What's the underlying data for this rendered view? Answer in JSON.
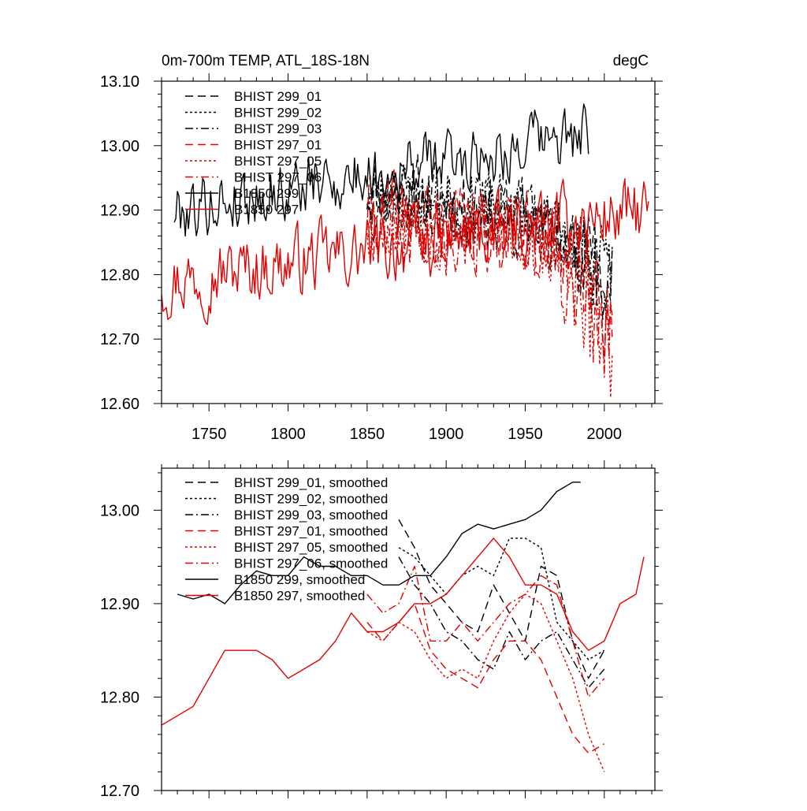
{
  "chart_data": [
    {
      "type": "line",
      "title": "0m-700m TEMP, ATL_18S-18N",
      "title_right": "degC",
      "xlabel": "",
      "ylabel": "",
      "xlim": [
        1720,
        2032
      ],
      "ylim": [
        12.6,
        13.1
      ],
      "xticks": [
        1750,
        1800,
        1850,
        1900,
        1950,
        2000
      ],
      "xtick_labels": [
        "1750",
        "1800",
        "1850",
        "1900",
        "1950",
        "2000"
      ],
      "yticks": [
        12.6,
        12.7,
        12.8,
        12.9,
        13.0,
        13.1
      ],
      "ytick_labels": [
        "12.60",
        "12.70",
        "12.80",
        "12.90",
        "13.00",
        "13.10"
      ],
      "legend_position": "top-left",
      "series": [
        {
          "name": "BHIST 299_01",
          "color": "#000000",
          "dash": "long-dash",
          "x_start": 1850,
          "x_end": 2005,
          "step": 1,
          "base": 12.935,
          "slope": -0.0004,
          "amp": 0.065,
          "seed": 11,
          "end_drop": 0.08
        },
        {
          "name": "BHIST 299_02",
          "color": "#000000",
          "dash": "short-dash",
          "x_start": 1850,
          "x_end": 2005,
          "step": 1,
          "base": 12.93,
          "slope": -0.0004,
          "amp": 0.065,
          "seed": 23,
          "end_drop": 0.09
        },
        {
          "name": "BHIST 299_03",
          "color": "#000000",
          "dash": "dash-dot",
          "x_start": 1850,
          "x_end": 2005,
          "step": 1,
          "base": 12.925,
          "slope": -0.0004,
          "amp": 0.065,
          "seed": 37,
          "end_drop": 0.07
        },
        {
          "name": "BHIST 297_01",
          "color": "#e00000",
          "dash": "long-dash",
          "x_start": 1850,
          "x_end": 2005,
          "step": 1,
          "base": 12.895,
          "slope": -0.0003,
          "amp": 0.07,
          "seed": 41,
          "end_drop": 0.12
        },
        {
          "name": "BHIST 297_05",
          "color": "#e00000",
          "dash": "short-dash",
          "x_start": 1850,
          "x_end": 2005,
          "step": 1,
          "base": 12.89,
          "slope": -0.0003,
          "amp": 0.07,
          "seed": 53,
          "end_drop": 0.14
        },
        {
          "name": "BHIST 297_06",
          "color": "#e00000",
          "dash": "dash-dot",
          "x_start": 1850,
          "x_end": 2005,
          "step": 1,
          "base": 12.885,
          "slope": -0.0003,
          "amp": 0.07,
          "seed": 67,
          "end_drop": 0.12
        },
        {
          "name": "B1850 299",
          "color": "#000000",
          "dash": "solid",
          "x_start": 1728,
          "x_end": 1990,
          "step": 1,
          "base": 12.9,
          "slope": 0.00045,
          "amp": 0.055,
          "seed": 79,
          "end_drop": 0
        },
        {
          "name": "B1850 297",
          "color": "#e00000",
          "dash": "solid",
          "x_start": 1720,
          "x_end": 2028,
          "step": 1,
          "base": 12.79,
          "slope": 0.00035,
          "amp": 0.06,
          "seed": 97,
          "end_drop": 0
        }
      ]
    },
    {
      "type": "line",
      "title": "",
      "xlabel": "",
      "ylabel": "",
      "xlim": [
        1720,
        2032
      ],
      "ylim": [
        12.7,
        13.045
      ],
      "yticks": [
        12.7,
        12.8,
        12.9,
        13.0
      ],
      "ytick_labels": [
        "12.70",
        "12.80",
        "12.90",
        "13.00"
      ],
      "legend_position": "top-left",
      "series": [
        {
          "name": "BHIST 299_01, smoothed",
          "color": "#000000",
          "dash": "long-dash",
          "x": [
            1870,
            1880,
            1890,
            1900,
            1910,
            1920,
            1930,
            1940,
            1950,
            1960,
            1970,
            1980,
            1990,
            2000
          ],
          "values": [
            12.99,
            12.96,
            12.92,
            12.9,
            12.88,
            12.87,
            12.92,
            12.89,
            12.86,
            12.94,
            12.93,
            12.86,
            12.82,
            12.85
          ]
        },
        {
          "name": "BHIST 299_02, smoothed",
          "color": "#000000",
          "dash": "short-dash",
          "x": [
            1870,
            1880,
            1890,
            1900,
            1910,
            1920,
            1930,
            1940,
            1950,
            1960,
            1970,
            1980,
            1990,
            2000
          ],
          "values": [
            12.96,
            12.95,
            12.93,
            12.91,
            12.93,
            12.94,
            12.93,
            12.97,
            12.97,
            12.96,
            12.88,
            12.86,
            12.84,
            12.85
          ]
        },
        {
          "name": "BHIST 299_03, smoothed",
          "color": "#000000",
          "dash": "dash-dot",
          "x": [
            1870,
            1880,
            1890,
            1900,
            1910,
            1920,
            1930,
            1940,
            1950,
            1960,
            1970,
            1980,
            1990,
            2000
          ],
          "values": [
            12.95,
            12.92,
            12.9,
            12.87,
            12.86,
            12.84,
            12.83,
            12.87,
            12.84,
            12.86,
            12.87,
            12.84,
            12.81,
            12.83
          ]
        },
        {
          "name": "BHIST 297_01, smoothed",
          "color": "#e00000",
          "dash": "long-dash",
          "x": [
            1850,
            1860,
            1870,
            1880,
            1890,
            1900,
            1910,
            1920,
            1930,
            1940,
            1950,
            1960,
            1970,
            1980,
            1990,
            2000
          ],
          "values": [
            12.88,
            12.86,
            12.88,
            12.9,
            12.85,
            12.83,
            12.82,
            12.81,
            12.84,
            12.86,
            12.86,
            12.84,
            12.8,
            12.76,
            12.74,
            12.75
          ]
        },
        {
          "name": "BHIST 297_05, smoothed",
          "color": "#e00000",
          "dash": "short-dash",
          "x": [
            1850,
            1860,
            1870,
            1880,
            1890,
            1900,
            1910,
            1920,
            1930,
            1940,
            1950,
            1960,
            1970,
            1980,
            1990,
            2000
          ],
          "values": [
            12.87,
            12.86,
            12.88,
            12.87,
            12.84,
            12.82,
            12.83,
            12.82,
            12.86,
            12.89,
            12.91,
            12.9,
            12.86,
            12.82,
            12.76,
            12.72
          ]
        },
        {
          "name": "BHIST 297_06, smoothed",
          "color": "#e00000",
          "dash": "dash-dot",
          "x": [
            1850,
            1860,
            1870,
            1880,
            1890,
            1900,
            1910,
            1920,
            1930,
            1940,
            1950,
            1960,
            1970,
            1980,
            1990,
            2000
          ],
          "values": [
            12.91,
            12.89,
            12.9,
            12.94,
            12.86,
            12.86,
            12.88,
            12.86,
            12.88,
            12.9,
            12.91,
            12.93,
            12.92,
            12.86,
            12.8,
            12.82
          ]
        },
        {
          "name": "B1850 299, smoothed",
          "color": "#000000",
          "dash": "solid",
          "x": [
            1730,
            1740,
            1750,
            1760,
            1770,
            1780,
            1790,
            1800,
            1810,
            1820,
            1830,
            1840,
            1850,
            1860,
            1870,
            1880,
            1890,
            1900,
            1910,
            1920,
            1930,
            1940,
            1950,
            1960,
            1970,
            1980,
            1985
          ],
          "values": [
            12.91,
            12.905,
            12.91,
            12.9,
            12.92,
            12.935,
            12.93,
            12.93,
            12.95,
            12.94,
            12.94,
            12.93,
            12.93,
            12.92,
            12.92,
            12.93,
            12.93,
            12.95,
            12.975,
            12.985,
            12.98,
            12.985,
            12.99,
            13.0,
            13.02,
            13.03,
            13.03
          ]
        },
        {
          "name": "B1850 297, smoothed",
          "color": "#e00000",
          "dash": "solid",
          "x": [
            1720,
            1730,
            1740,
            1750,
            1760,
            1770,
            1780,
            1790,
            1800,
            1810,
            1820,
            1830,
            1840,
            1850,
            1860,
            1870,
            1880,
            1890,
            1900,
            1910,
            1920,
            1930,
            1940,
            1950,
            1960,
            1970,
            1980,
            1990,
            2000,
            2010,
            2020,
            2025
          ],
          "values": [
            12.77,
            12.78,
            12.79,
            12.82,
            12.85,
            12.85,
            12.85,
            12.84,
            12.82,
            12.83,
            12.84,
            12.86,
            12.89,
            12.87,
            12.87,
            12.88,
            12.9,
            12.9,
            12.91,
            12.93,
            12.95,
            12.97,
            12.95,
            12.92,
            12.92,
            12.91,
            12.87,
            12.85,
            12.86,
            12.9,
            12.91,
            12.95
          ]
        }
      ]
    }
  ]
}
